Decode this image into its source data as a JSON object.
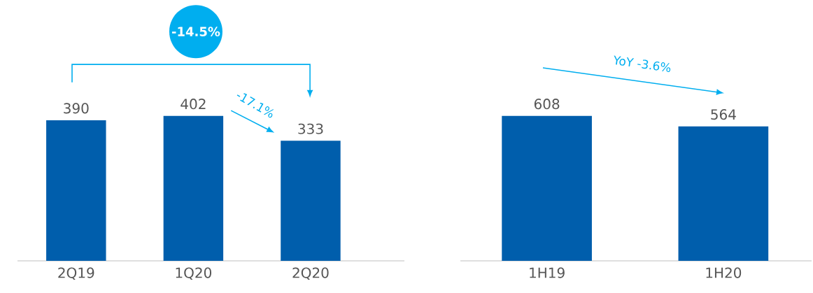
{
  "chart_data": [
    {
      "type": "bar",
      "categories": [
        "2Q19",
        "1Q20",
        "2Q20"
      ],
      "values": [
        390,
        402,
        333
      ],
      "color": "#005eac",
      "data_labels": true,
      "annotations": [
        "-14.5%",
        "-17.1%"
      ]
    },
    {
      "type": "bar",
      "categories": [
        "1H19",
        "1H20"
      ],
      "values": [
        608,
        564
      ],
      "color": "#005eac",
      "data_labels": true,
      "annotations": [
        "YoY -3.6%"
      ]
    }
  ]
}
